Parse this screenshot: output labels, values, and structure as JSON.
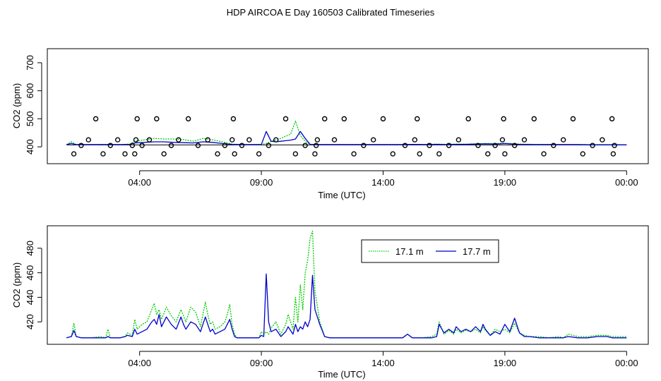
{
  "title": "HDP AIRCOA E  Day 160503  Calibrated Timeseries",
  "chart_data": [
    {
      "type": "line",
      "xlabel": "Time (UTC)",
      "ylabel": "CO2 (ppm)",
      "xlim": [
        0.5,
        24.6
      ],
      "ylim": [
        350,
        740
      ],
      "x_ticks": [
        {
          "value": 4,
          "label": "04:00"
        },
        {
          "value": 9,
          "label": "09:00"
        },
        {
          "value": 14,
          "label": "14:00"
        },
        {
          "value": 19,
          "label": "19:00"
        },
        {
          "value": 24,
          "label": "00:00"
        }
      ],
      "y_ticks": [
        {
          "value": 400,
          "label": "400"
        },
        {
          "value": 500,
          "label": "500"
        },
        {
          "value": 600,
          "label": "600"
        },
        {
          "value": 700,
          "label": "700"
        }
      ],
      "series": [
        {
          "name": "17.1 m",
          "color": "#00cc00",
          "dashed": true,
          "x": [
            1.0,
            1.2,
            1.4,
            2.0,
            2.6,
            3.2,
            3.6,
            3.8,
            4.2,
            4.6,
            5.0,
            5.4,
            5.8,
            6.2,
            6.6,
            7.0,
            7.4,
            7.8,
            8.2,
            8.6,
            9.0,
            9.2,
            9.4,
            9.6,
            9.8,
            10.0,
            10.2,
            10.4,
            10.6,
            10.8,
            11.0,
            11.4,
            11.8,
            12.4,
            13.0,
            13.6,
            14.2,
            14.8,
            15.2,
            15.8,
            16.2,
            16.6,
            17.0,
            17.4,
            17.8,
            18.2,
            18.6,
            19.0,
            19.2,
            19.6,
            20.2,
            20.8,
            21.4,
            22.0,
            22.6,
            23.4,
            24.0
          ],
          "y": [
            408,
            418,
            408,
            408,
            409,
            408,
            410,
            420,
            425,
            430,
            428,
            428,
            426,
            420,
            430,
            425,
            418,
            410,
            408,
            408,
            409,
            412,
            420,
            425,
            430,
            438,
            445,
            492,
            440,
            420,
            409,
            408,
            408,
            408,
            408,
            408,
            408,
            408,
            409,
            409,
            410,
            409,
            410,
            410,
            411,
            412,
            412,
            413,
            412,
            410,
            409,
            409,
            408,
            408,
            408,
            408,
            407
          ]
        },
        {
          "name": "17.7 m",
          "color": "#0000cc",
          "dashed": false,
          "x": [
            1.0,
            1.2,
            1.4,
            2.0,
            2.6,
            3.2,
            3.6,
            3.8,
            4.2,
            4.6,
            5.0,
            5.4,
            5.8,
            6.2,
            6.6,
            7.0,
            7.4,
            7.8,
            8.2,
            8.6,
            9.0,
            9.2,
            9.4,
            9.6,
            9.8,
            10.0,
            10.2,
            10.4,
            10.6,
            10.8,
            11.0,
            11.4,
            11.8,
            12.4,
            13.0,
            13.6,
            14.2,
            14.8,
            15.2,
            15.8,
            16.2,
            16.6,
            17.0,
            17.4,
            17.8,
            18.2,
            18.6,
            19.0,
            19.2,
            19.6,
            20.2,
            20.8,
            21.4,
            22.0,
            22.6,
            23.4,
            24.0
          ],
          "y": [
            408,
            412,
            408,
            408,
            408,
            408,
            409,
            414,
            416,
            418,
            418,
            416,
            415,
            414,
            418,
            416,
            412,
            409,
            408,
            408,
            408,
            455,
            420,
            418,
            420,
            422,
            424,
            428,
            455,
            430,
            409,
            408,
            408,
            408,
            408,
            408,
            408,
            408,
            409,
            408,
            409,
            408,
            409,
            409,
            410,
            411,
            410,
            412,
            411,
            409,
            408,
            408,
            408,
            408,
            407,
            407,
            407
          ]
        }
      ],
      "reference_line": 407,
      "markers": {
        "name": "calibration points",
        "x": [
          1.3,
          1.6,
          1.9,
          2.2,
          2.5,
          2.8,
          3.1,
          3.4,
          3.7,
          3.8,
          3.85,
          3.9,
          4.1,
          4.4,
          4.7,
          5.0,
          5.3,
          5.6,
          6.0,
          6.4,
          6.8,
          7.2,
          7.5,
          7.8,
          7.85,
          7.9,
          8.2,
          8.5,
          8.9,
          9.3,
          9.6,
          10.0,
          10.4,
          10.8,
          11.2,
          11.25,
          11.3,
          11.6,
          12.0,
          12.4,
          12.8,
          13.2,
          13.6,
          14.0,
          14.4,
          14.9,
          15.3,
          15.4,
          15.5,
          15.9,
          16.3,
          16.7,
          17.1,
          17.5,
          17.9,
          18.3,
          18.6,
          18.9,
          18.95,
          19.0,
          19.4,
          19.8,
          20.2,
          20.6,
          21.0,
          21.4,
          21.8,
          22.2,
          22.6,
          23.0,
          23.4,
          23.45,
          23.5
        ],
        "y": [
          375,
          405,
          425,
          500,
          375,
          405,
          425,
          375,
          405,
          375,
          425,
          500,
          405,
          425,
          500,
          375,
          405,
          425,
          500,
          405,
          425,
          375,
          405,
          425,
          500,
          375,
          405,
          425,
          375,
          405,
          425,
          500,
          375,
          405,
          375,
          405,
          425,
          500,
          425,
          500,
          375,
          405,
          425,
          500,
          375,
          405,
          425,
          500,
          375,
          405,
          375,
          405,
          425,
          500,
          405,
          375,
          405,
          425,
          500,
          375,
          405,
          425,
          500,
          375,
          405,
          425,
          500,
          375,
          405,
          425,
          500,
          375,
          405
        ]
      }
    },
    {
      "type": "line",
      "xlabel": "Time (UTC)",
      "ylabel": "CO2 (ppm)",
      "xlim": [
        0.5,
        24.6
      ],
      "ylim": [
        404,
        496
      ],
      "x_ticks": [
        {
          "value": 4,
          "label": "04:00"
        },
        {
          "value": 9,
          "label": "09:00"
        },
        {
          "value": 14,
          "label": "14:00"
        },
        {
          "value": 19,
          "label": "19:00"
        },
        {
          "value": 24,
          "label": "00:00"
        }
      ],
      "y_ticks": [
        {
          "value": 420,
          "label": "420"
        },
        {
          "value": 440,
          "label": "440"
        },
        {
          "value": 460,
          "label": "460"
        },
        {
          "value": 480,
          "label": "480"
        }
      ],
      "legend": {
        "position": "top-right"
      },
      "series": [
        {
          "name": "17.1 m",
          "color": "#00cc00",
          "dashed": true,
          "x": [
            1.0,
            1.2,
            1.3,
            1.4,
            1.6,
            2.0,
            2.4,
            2.6,
            2.7,
            2.8,
            3.2,
            3.4,
            3.5,
            3.7,
            3.8,
            3.9,
            4.1,
            4.3,
            4.5,
            4.6,
            4.7,
            4.8,
            4.9,
            5.1,
            5.3,
            5.5,
            5.7,
            5.8,
            5.9,
            6.1,
            6.3,
            6.5,
            6.7,
            6.8,
            6.9,
            7.0,
            7.1,
            7.3,
            7.5,
            7.6,
            7.7,
            7.8,
            7.9,
            8.0,
            8.2,
            8.4,
            8.7,
            8.9,
            9.0,
            9.1,
            9.2,
            9.3,
            9.4,
            9.6,
            9.8,
            10.0,
            10.1,
            10.3,
            10.4,
            10.5,
            10.6,
            10.7,
            10.8,
            10.9,
            11.0,
            11.1,
            11.2,
            11.4,
            11.6,
            11.8,
            12.2,
            13.0,
            14.0,
            14.8,
            15.0,
            15.2,
            15.6,
            16.0,
            16.2,
            16.3,
            16.5,
            16.7,
            16.9,
            17.0,
            17.2,
            17.4,
            17.6,
            17.8,
            18.0,
            18.1,
            18.2,
            18.4,
            18.6,
            18.8,
            19.0,
            19.2,
            19.4,
            19.6,
            19.8,
            20.0,
            20.4,
            20.8,
            21.2,
            21.4,
            21.6,
            22.0,
            22.4,
            22.8,
            23.2,
            23.4,
            23.6,
            24.0
          ],
          "y": [
            407,
            408,
            419,
            408,
            407,
            407,
            408,
            407,
            414,
            407,
            407,
            408,
            411,
            409,
            422,
            414,
            418,
            420,
            430,
            435,
            426,
            430,
            422,
            432,
            425,
            420,
            430,
            425,
            420,
            432,
            428,
            416,
            436,
            426,
            418,
            420,
            414,
            416,
            420,
            426,
            434,
            418,
            410,
            407,
            407,
            407,
            407,
            407,
            412,
            410,
            412,
            410,
            415,
            420,
            410,
            418,
            426,
            414,
            440,
            420,
            450,
            430,
            460,
            470,
            488,
            494,
            445,
            420,
            408,
            407,
            407,
            407,
            407,
            407,
            410,
            407,
            407,
            408,
            410,
            420,
            410,
            413,
            410,
            414,
            411,
            413,
            412,
            414,
            411,
            416,
            413,
            409,
            414,
            412,
            414,
            411,
            419,
            411,
            409,
            408,
            408,
            407,
            408,
            407,
            410,
            408,
            408,
            409,
            409,
            408,
            408,
            408
          ]
        },
        {
          "name": "17.7 m",
          "color": "#0000cc",
          "dashed": false,
          "x": [
            1.0,
            1.2,
            1.3,
            1.4,
            1.6,
            2.0,
            2.4,
            2.6,
            2.7,
            2.8,
            3.2,
            3.4,
            3.5,
            3.7,
            3.8,
            3.9,
            4.1,
            4.3,
            4.5,
            4.6,
            4.7,
            4.8,
            4.9,
            5.1,
            5.3,
            5.5,
            5.7,
            5.8,
            5.9,
            6.1,
            6.3,
            6.5,
            6.7,
            6.8,
            6.9,
            7.0,
            7.1,
            7.3,
            7.5,
            7.6,
            7.7,
            7.8,
            7.9,
            8.0,
            8.2,
            8.4,
            8.7,
            8.9,
            9.0,
            9.1,
            9.2,
            9.3,
            9.4,
            9.6,
            9.8,
            10.0,
            10.1,
            10.3,
            10.4,
            10.5,
            10.6,
            10.7,
            10.8,
            10.9,
            11.0,
            11.1,
            11.2,
            11.4,
            11.6,
            11.8,
            12.2,
            13.0,
            14.0,
            14.8,
            15.0,
            15.2,
            15.6,
            16.0,
            16.2,
            16.3,
            16.5,
            16.7,
            16.9,
            17.0,
            17.2,
            17.4,
            17.6,
            17.8,
            18.0,
            18.1,
            18.2,
            18.4,
            18.6,
            18.8,
            19.0,
            19.2,
            19.4,
            19.6,
            19.8,
            20.0,
            20.4,
            20.8,
            21.2,
            21.4,
            21.6,
            22.0,
            22.4,
            22.8,
            23.2,
            23.4,
            23.6,
            24.0
          ],
          "y": [
            407,
            408,
            413,
            408,
            407,
            407,
            407,
            407,
            408,
            407,
            407,
            408,
            409,
            408,
            414,
            410,
            412,
            414,
            420,
            422,
            418,
            426,
            416,
            424,
            418,
            414,
            424,
            418,
            414,
            420,
            418,
            412,
            424,
            418,
            412,
            414,
            410,
            412,
            414,
            418,
            422,
            414,
            408,
            407,
            407,
            407,
            407,
            407,
            409,
            408,
            459,
            420,
            412,
            414,
            408,
            412,
            416,
            410,
            418,
            412,
            416,
            414,
            420,
            416,
            422,
            458,
            430,
            418,
            408,
            407,
            407,
            407,
            407,
            407,
            410,
            407,
            407,
            407,
            408,
            418,
            411,
            414,
            411,
            416,
            412,
            414,
            412,
            416,
            412,
            418,
            414,
            409,
            412,
            410,
            418,
            412,
            423,
            411,
            408,
            408,
            407,
            407,
            407,
            407,
            408,
            407,
            407,
            408,
            408,
            407,
            407,
            407
          ]
        }
      ]
    }
  ]
}
